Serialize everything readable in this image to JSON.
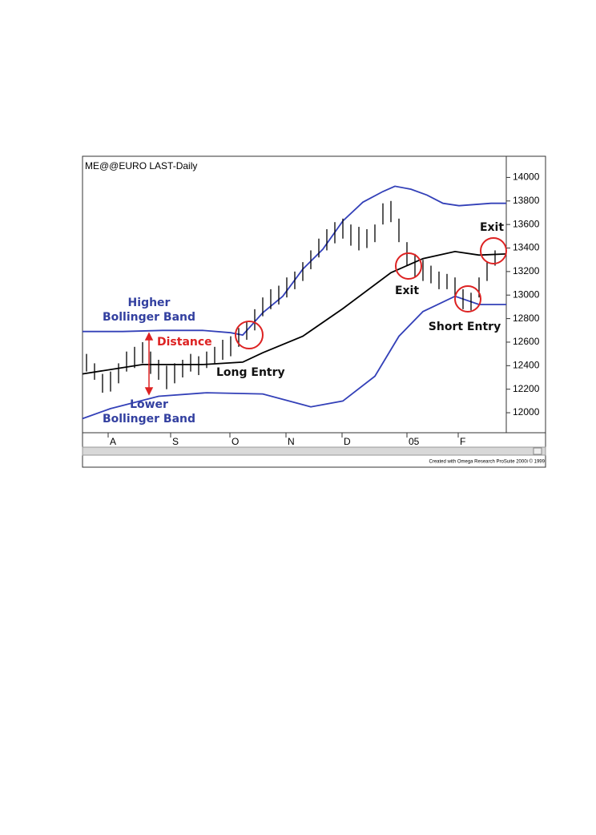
{
  "chart_data": {
    "type": "line",
    "title": "ME@@EURO LAST-Daily",
    "footer": "Created with Omega Research ProSuite 2000i © 1999",
    "xlim": [
      0,
      105.8
    ],
    "ylim": [
      11830,
      14180
    ],
    "yticks": [
      12000,
      12200,
      12400,
      12600,
      12800,
      13000,
      13200,
      13400,
      13600,
      13800,
      14000
    ],
    "xticks": [
      {
        "value": 6.4,
        "label": "A"
      },
      {
        "value": 22,
        "label": "S"
      },
      {
        "value": 36.8,
        "label": "O"
      },
      {
        "value": 50.8,
        "label": "N"
      },
      {
        "value": 64.8,
        "label": "D"
      },
      {
        "value": 81,
        "label": "05"
      },
      {
        "value": 93.8,
        "label": "F"
      }
    ],
    "series": [
      {
        "color": "#3340b8",
        "x": [
          0,
          10,
          20,
          30,
          37,
          40,
          45,
          50,
          55,
          60,
          65,
          70,
          75,
          78,
          82,
          86,
          90,
          94,
          98,
          102,
          105.8
        ],
        "values": [
          12690,
          12690,
          12700,
          12700,
          12680,
          12660,
          12850,
          12990,
          13220,
          13390,
          13630,
          13790,
          13880,
          13925,
          13900,
          13850,
          13780,
          13760,
          13770,
          13780,
          13780
        ]
      },
      {
        "color": "#000000",
        "x": [
          0,
          15,
          30,
          40,
          45,
          55,
          65,
          77,
          85,
          93,
          99,
          105.8
        ],
        "values": [
          12330,
          12410,
          12410,
          12430,
          12510,
          12650,
          12885,
          13190,
          13310,
          13370,
          13340,
          13350
        ]
      },
      {
        "color": "#3340b8",
        "x": [
          0,
          7,
          19,
          31,
          45,
          57,
          65,
          73,
          79,
          85,
          93,
          99,
          105.8
        ],
        "values": [
          11950,
          12035,
          12140,
          12170,
          12160,
          12050,
          12100,
          12310,
          12650,
          12860,
          12990,
          12920,
          12920
        ]
      }
    ],
    "price_bars": {
      "color": "#000000",
      "x": [
        1,
        3,
        5,
        7,
        9,
        11,
        13,
        15,
        17,
        19,
        21,
        23,
        25,
        27,
        29,
        31,
        33,
        35,
        37,
        39,
        41,
        43,
        45,
        47,
        49,
        51,
        53,
        55,
        57,
        59,
        61,
        63,
        65,
        67,
        69,
        71,
        73,
        75,
        77,
        79,
        81,
        83,
        85,
        87,
        89,
        91,
        93,
        95,
        97,
        99,
        101,
        103
      ],
      "high": [
        12500,
        12420,
        12330,
        12350,
        12420,
        12520,
        12560,
        12600,
        12520,
        12450,
        12400,
        12420,
        12450,
        12500,
        12480,
        12520,
        12560,
        12620,
        12650,
        12720,
        12780,
        12880,
        12980,
        13050,
        13080,
        13150,
        13200,
        13280,
        13380,
        13480,
        13560,
        13620,
        13650,
        13600,
        13580,
        13560,
        13600,
        13780,
        13800,
        13650,
        13450,
        13350,
        13300,
        13250,
        13200,
        13180,
        13150,
        13050,
        13020,
        13150,
        13280,
        13380
      ],
      "low": [
        12350,
        12280,
        12170,
        12180,
        12250,
        12350,
        12380,
        12420,
        12330,
        12280,
        12200,
        12250,
        12300,
        12350,
        12320,
        12380,
        12420,
        12450,
        12480,
        12560,
        12620,
        12700,
        12820,
        12880,
        12920,
        12980,
        13050,
        13120,
        13220,
        13320,
        13380,
        13440,
        13480,
        13420,
        13380,
        13400,
        13450,
        13600,
        13620,
        13450,
        13250,
        13150,
        13120,
        13100,
        13050,
        13050,
        12980,
        12880,
        12870,
        12980,
        13120,
        13250
      ]
    },
    "annotations": {
      "higher_band": [
        "Higher",
        "Bollinger Band"
      ],
      "lower_band": [
        "Lower",
        "Bollinger Band"
      ],
      "distance": "Distance",
      "long_entry": "Long Entry",
      "exit_1": "Exit",
      "exit_2": "Exit",
      "short_entry": "Short Entry"
    }
  }
}
